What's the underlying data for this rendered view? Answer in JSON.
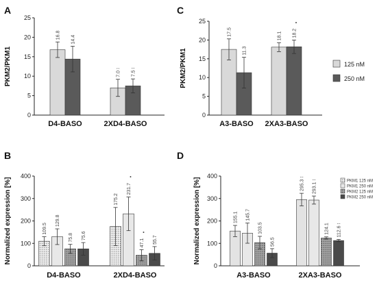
{
  "colors": {
    "light": "#d9d9d9",
    "dark": "#5a5a5a",
    "pkm2_125": "#999999",
    "pkm2_250": "#4a4a4a",
    "outline": "#333333"
  },
  "legend_C": {
    "items": [
      {
        "label": "125 nM",
        "color": "#d9d9d9",
        "pattern": "none"
      },
      {
        "label": "250 nM",
        "color": "#5a5a5a",
        "pattern": "none"
      }
    ]
  },
  "legend_D": {
    "items": [
      {
        "label": "PKM1 125 nM",
        "color": "#e3e3e3",
        "pattern": "dots"
      },
      {
        "label": "PKM1 250 nM",
        "color": "#e8e8e8",
        "pattern": "none"
      },
      {
        "label": "PKM2 125 nM",
        "color": "#999999",
        "pattern": "dots"
      },
      {
        "label": "PKM2 250 nM",
        "color": "#4a4a4a",
        "pattern": "none"
      }
    ]
  },
  "chart_data": [
    {
      "panel": "A",
      "type": "bar",
      "ylabel": "PKM2/PKM1",
      "ylim": [
        0,
        25
      ],
      "yticks": [
        0,
        5,
        10,
        15,
        20,
        25
      ],
      "categories": [
        "D4-BASO",
        "2XD4-BASO"
      ],
      "series": [
        {
          "color": "#d9d9d9",
          "pattern": "none",
          "values": [
            16.8,
            7.0
          ],
          "errors": [
            2.0,
            2.2
          ],
          "labels": [
            "16.8",
            "7.0 ⁝"
          ]
        },
        {
          "color": "#5a5a5a",
          "pattern": "none",
          "values": [
            14.4,
            7.5
          ],
          "errors": [
            3.3,
            1.8
          ],
          "labels": [
            "14.4",
            "7.5 ⁝"
          ]
        }
      ]
    },
    {
      "panel": "C",
      "type": "bar",
      "ylabel": "PKM2/PKM1",
      "ylim": [
        0,
        25
      ],
      "yticks": [
        0,
        5,
        10,
        15,
        20,
        25
      ],
      "categories": [
        "A3-BASO",
        "2XA3-BASO"
      ],
      "series": [
        {
          "color": "#d9d9d9",
          "pattern": "none",
          "values": [
            17.5,
            18.1
          ],
          "errors": [
            2.8,
            1.2
          ],
          "labels": [
            "17.5",
            "18.1"
          ]
        },
        {
          "color": "#5a5a5a",
          "pattern": "none",
          "values": [
            11.3,
            18.2
          ],
          "errors": [
            4.1,
            1.8
          ],
          "labels": [
            "11.3",
            "18.2"
          ]
        }
      ],
      "annotations": [
        {
          "text": "•",
          "category": 1,
          "series": 1
        }
      ]
    },
    {
      "panel": "B",
      "type": "bar",
      "ylabel": "Normalized expression [%]",
      "ylim": [
        0,
        400
      ],
      "yticks": [
        0,
        100,
        200,
        300,
        400
      ],
      "categories": [
        "D4-BASO",
        "2XD4-BASO"
      ],
      "series": [
        {
          "color": "#e3e3e3",
          "pattern": "dots",
          "values": [
            109.5,
            175.2
          ],
          "errors": [
            20,
            85
          ],
          "labels": [
            "109.5",
            "175.2"
          ]
        },
        {
          "color": "#e8e8e8",
          "pattern": "none",
          "values": [
            129.8,
            231.7
          ],
          "errors": [
            35,
            75
          ],
          "labels": [
            "129.8",
            "231.7"
          ]
        },
        {
          "color": "#999999",
          "pattern": "dots",
          "values": [
            75.8,
            47.1
          ],
          "errors": [
            20,
            25
          ],
          "labels": [
            "75.8",
            "47.1"
          ]
        },
        {
          "color": "#4a4a4a",
          "pattern": "none",
          "values": [
            75.6,
            55.7
          ],
          "errors": [
            28,
            30
          ],
          "labels": [
            "75.6",
            "55.7"
          ]
        }
      ],
      "annotations": [
        {
          "text": "•",
          "category": 1,
          "series": 1
        },
        {
          "text": "•",
          "category": 1,
          "series": 2
        }
      ]
    },
    {
      "panel": "D",
      "type": "bar",
      "ylabel": "Normalized expression [%]",
      "ylim": [
        0,
        400
      ],
      "yticks": [
        0,
        100,
        200,
        300,
        400
      ],
      "categories": [
        "A3-BASO",
        "2XA3-BASO"
      ],
      "series": [
        {
          "color": "#e3e3e3",
          "pattern": "none",
          "values": [
            155.1,
            295.3
          ],
          "errors": [
            25,
            28
          ],
          "labels": [
            "155.1",
            "295.3 ⁝"
          ]
        },
        {
          "color": "#e8e8e8",
          "pattern": "none",
          "values": [
            145.7,
            293.1
          ],
          "errors": [
            45,
            18
          ],
          "labels": [
            "145.7",
            "293.1 ⁝"
          ]
        },
        {
          "color": "#999999",
          "pattern": "dots",
          "values": [
            103.5,
            124.1
          ],
          "errors": [
            28,
            5
          ],
          "labels": [
            "103.5",
            "124.1"
          ]
        },
        {
          "color": "#4a4a4a",
          "pattern": "none",
          "values": [
            56.5,
            112.6
          ],
          "errors": [
            20,
            5
          ],
          "labels": [
            "56.5",
            "112.6 ⁝"
          ]
        }
      ]
    }
  ]
}
